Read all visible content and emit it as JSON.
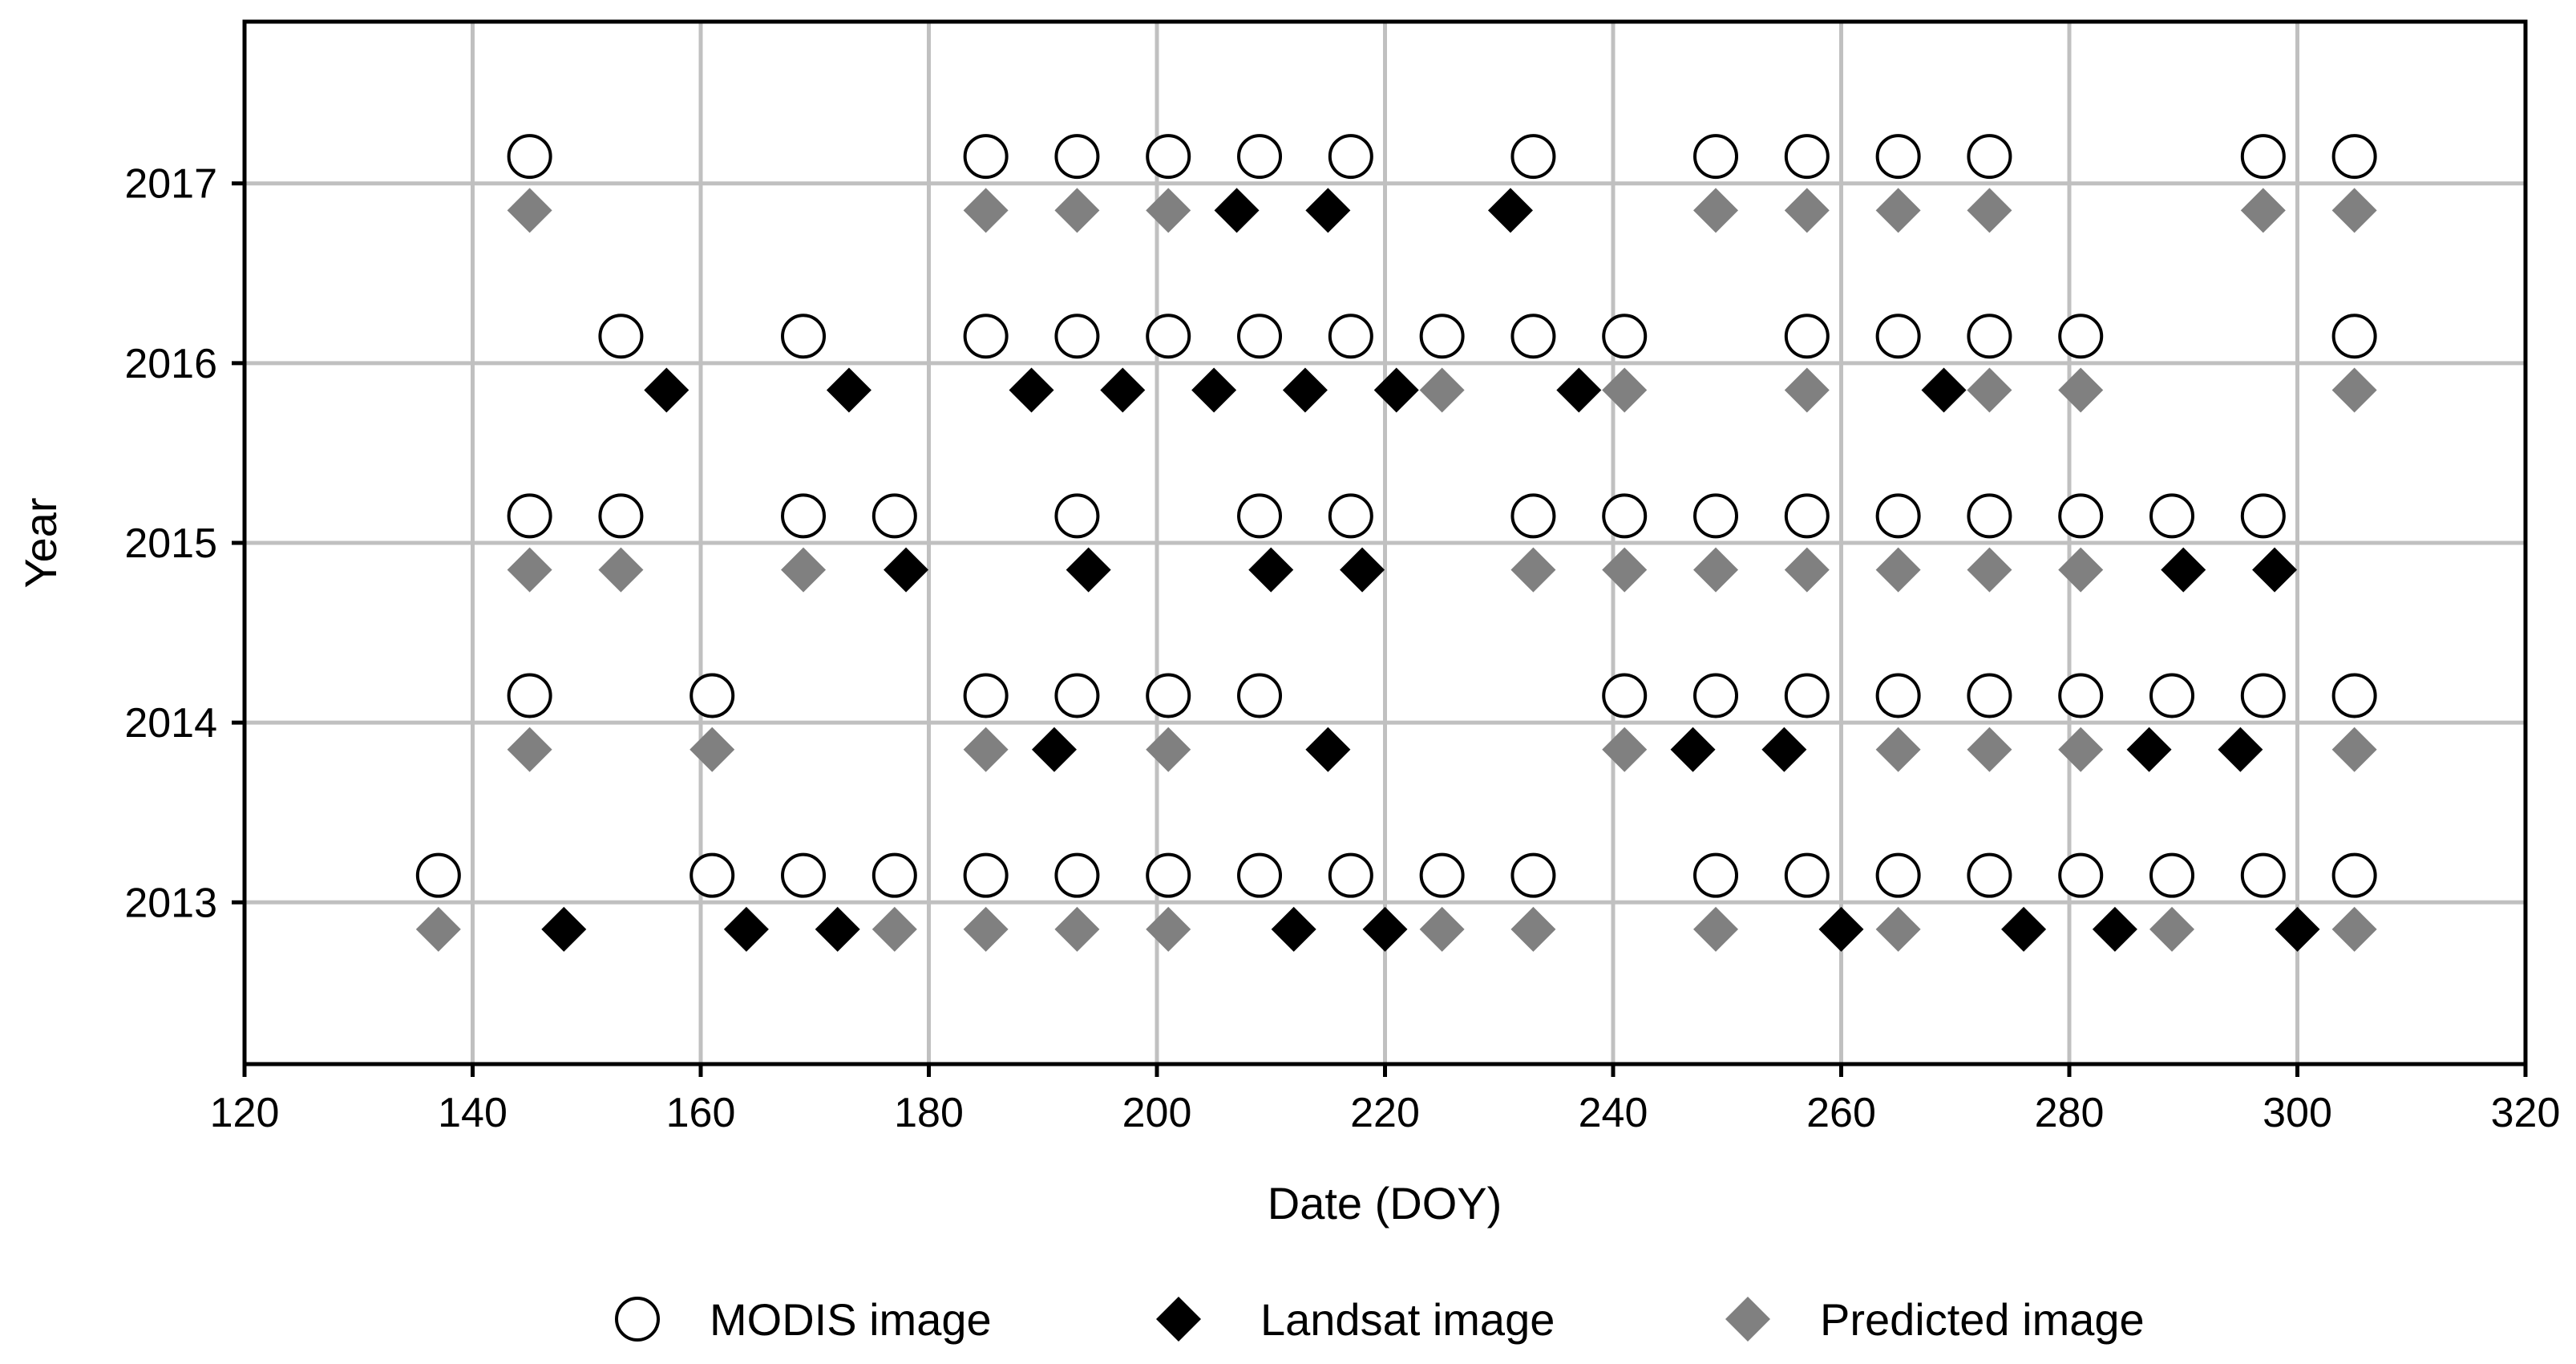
{
  "chart_data": {
    "type": "scatter",
    "title": "",
    "xlabel": "Date (DOY)",
    "ylabel": "Year",
    "xlim": [
      120,
      320
    ],
    "ylim": [
      2012.1,
      2017.9
    ],
    "xticks": [
      120,
      140,
      160,
      180,
      200,
      220,
      240,
      260,
      280,
      300,
      320
    ],
    "yticks": [
      2013,
      2014,
      2015,
      2016,
      2017
    ],
    "grid": true,
    "legend_position": "bottom",
    "series": [
      {
        "name": "MODIS image",
        "marker": "open-circle",
        "color": "#000000",
        "offset": 0.15,
        "points_by_year": {
          "2013": [
            137,
            161,
            169,
            177,
            185,
            193,
            201,
            209,
            217,
            225,
            233,
            249,
            257,
            265,
            273,
            281,
            289,
            297,
            305
          ],
          "2014": [
            145,
            161,
            185,
            193,
            201,
            209,
            241,
            249,
            257,
            265,
            273,
            281,
            289,
            297,
            305
          ],
          "2015": [
            145,
            153,
            169,
            177,
            193,
            209,
            217,
            233,
            241,
            249,
            257,
            265,
            273,
            281,
            289,
            297
          ],
          "2016": [
            153,
            169,
            185,
            193,
            201,
            209,
            217,
            225,
            233,
            241,
            257,
            265,
            273,
            281,
            305
          ],
          "2017": [
            145,
            185,
            193,
            201,
            209,
            217,
            233,
            249,
            257,
            265,
            273,
            297,
            305
          ]
        }
      },
      {
        "name": "Landsat image",
        "marker": "diamond",
        "color": "#000000",
        "offset": -0.15,
        "points_by_year": {
          "2013": [
            148,
            164,
            172,
            212,
            220,
            260,
            276,
            284,
            300
          ],
          "2014": [
            191,
            215,
            247,
            255,
            287,
            295
          ],
          "2015": [
            178,
            194,
            210,
            218,
            290,
            298
          ],
          "2016": [
            157,
            173,
            189,
            197,
            205,
            213,
            221,
            237,
            269
          ],
          "2017": [
            207,
            215,
            231
          ]
        }
      },
      {
        "name": "Predicted image",
        "marker": "diamond",
        "color": "#808080",
        "offset": -0.15,
        "points_by_year": {
          "2013": [
            137,
            177,
            185,
            193,
            201,
            225,
            233,
            249,
            265,
            289,
            305
          ],
          "2014": [
            145,
            161,
            185,
            201,
            241,
            265,
            273,
            281,
            305
          ],
          "2015": [
            145,
            153,
            169,
            233,
            241,
            249,
            257,
            265,
            273,
            281
          ],
          "2016": [
            225,
            241,
            257,
            273,
            281,
            305
          ],
          "2017": [
            145,
            185,
            193,
            201,
            249,
            257,
            265,
            273,
            297,
            305
          ]
        }
      }
    ]
  }
}
